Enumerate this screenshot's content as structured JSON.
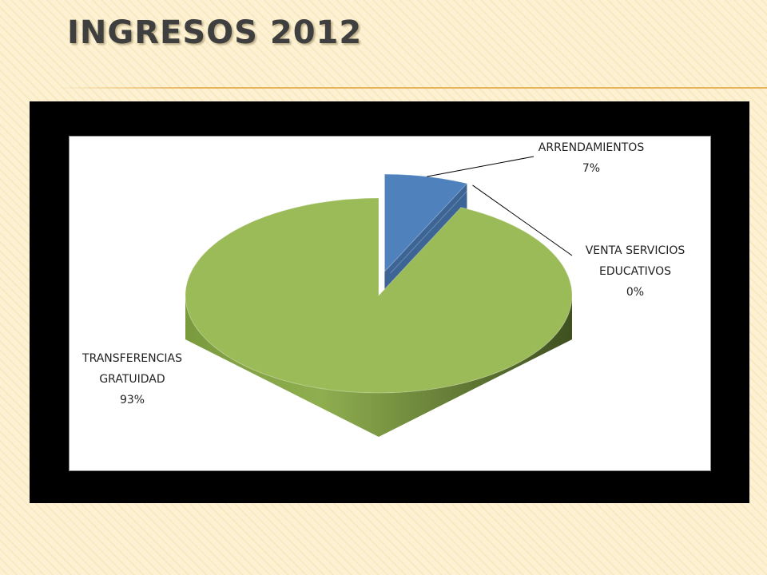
{
  "chart_data": {
    "type": "pie",
    "title": "INGRESOS 2012",
    "categories": [
      "ARRENDAMIENTOS",
      "VENTA SERVICIOS EDUCATIVOS",
      "TRANSFERENCIAS GRATUIDAD"
    ],
    "values": [
      7,
      0,
      93
    ],
    "value_labels": [
      "7%",
      "0%",
      "93%"
    ],
    "colors": [
      "#4f81bd",
      "#c0504d",
      "#9bbb59"
    ]
  }
}
